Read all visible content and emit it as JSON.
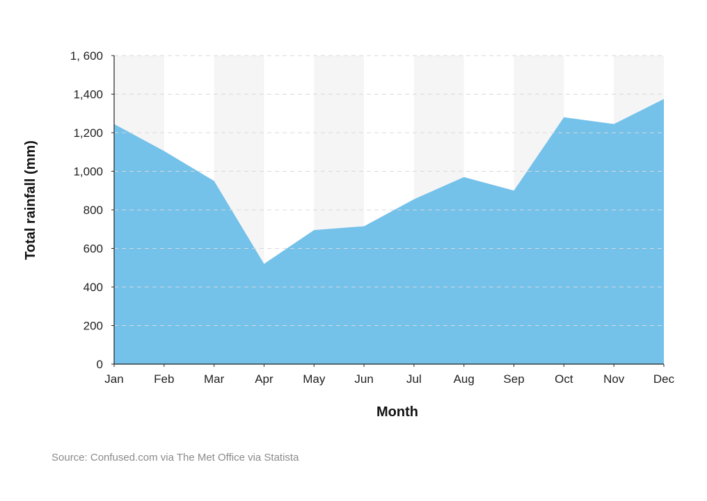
{
  "chart_data": {
    "type": "area",
    "categories": [
      "Jan",
      "Feb",
      "Mar",
      "Apr",
      "May",
      "Jun",
      "Jul",
      "Aug",
      "Sep",
      "Oct",
      "Nov",
      "Dec"
    ],
    "series": [
      {
        "values": [
          1245,
          1105,
          950,
          520,
          695,
          715,
          855,
          970,
          900,
          1280,
          1245,
          1375
        ]
      }
    ],
    "xlabel": "Month",
    "ylabel": "Total rainfall (mm)",
    "ylim": [
      0,
      1600
    ],
    "yticks": [
      0,
      200,
      400,
      600,
      800,
      1000,
      1200,
      1400,
      1600
    ],
    "ytick_labels": [
      "0",
      "200",
      "400",
      "600",
      "800",
      "1,000",
      "1,200",
      "1,400",
      "1, 600"
    ],
    "grid": true,
    "alternating_column_shading": true,
    "colors": {
      "area": "#74c1ea",
      "band": "#f5f5f5",
      "grid": "#d9d9d9",
      "axis": "#222222"
    }
  },
  "source": "Source: Confused.com via The Met Office via Statista"
}
